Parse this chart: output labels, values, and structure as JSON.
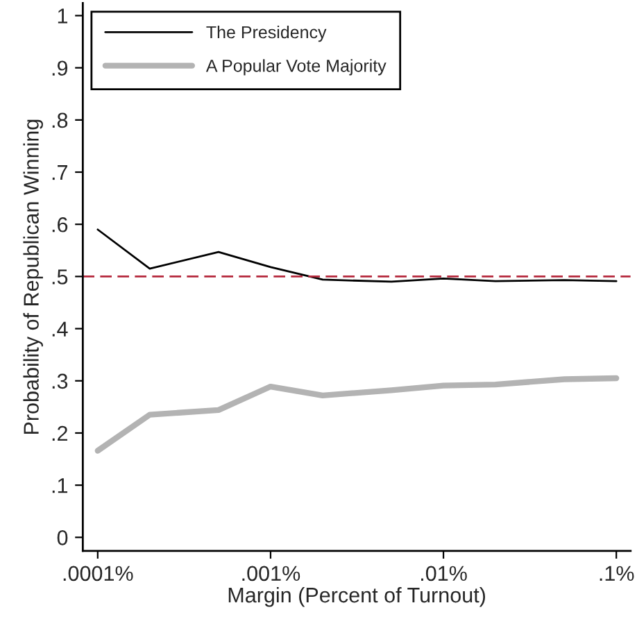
{
  "chart_data": {
    "type": "line",
    "xlabel": "Margin (Percent of Turnout)",
    "ylabel": "Probability of Republican Winning",
    "x": [
      0.0001,
      0.0002,
      0.0005,
      0.001,
      0.002,
      0.005,
      0.01,
      0.02,
      0.05,
      0.1
    ],
    "series": [
      {
        "name": "The Presidency",
        "color": "#000000",
        "values": [
          0.59,
          0.515,
          0.547,
          0.518,
          0.494,
          0.49,
          0.496,
          0.491,
          0.493,
          0.491
        ]
      },
      {
        "name": "A Popular Vote Majority",
        "color": "#b3b3b3",
        "values": [
          0.166,
          0.235,
          0.244,
          0.289,
          0.272,
          0.282,
          0.291,
          0.293,
          0.303,
          0.305
        ]
      }
    ],
    "log": "x",
    "xlim": [
      8.2e-05,
      0.121
    ],
    "xticks": [
      {
        "value": 0.0001,
        "label": ".0001%"
      },
      {
        "value": 0.001,
        "label": ".001%"
      },
      {
        "value": 0.01,
        "label": ".01%"
      },
      {
        "value": 0.1,
        "label": ".1%"
      }
    ],
    "ylim": [
      -0.026,
      1.024
    ],
    "yticks": [
      0,
      {
        "value": 0.1,
        "label": ".1"
      },
      {
        "value": 0.2,
        "label": ".2"
      },
      {
        "value": 0.3,
        "label": ".3"
      },
      {
        "value": 0.4,
        "label": ".4"
      },
      {
        "value": 0.5,
        "label": ".5"
      },
      {
        "value": 0.6,
        "label": ".6"
      },
      {
        "value": 0.7,
        "label": ".7"
      },
      {
        "value": 0.8,
        "label": ".8"
      },
      {
        "value": 0.9,
        "label": ".9"
      },
      1
    ],
    "ref_lines": [
      {
        "axis": "y",
        "value": 0.5,
        "color": "#b5283c",
        "line_style": "dashed"
      }
    ],
    "legend": "top left",
    "grid": false
  }
}
